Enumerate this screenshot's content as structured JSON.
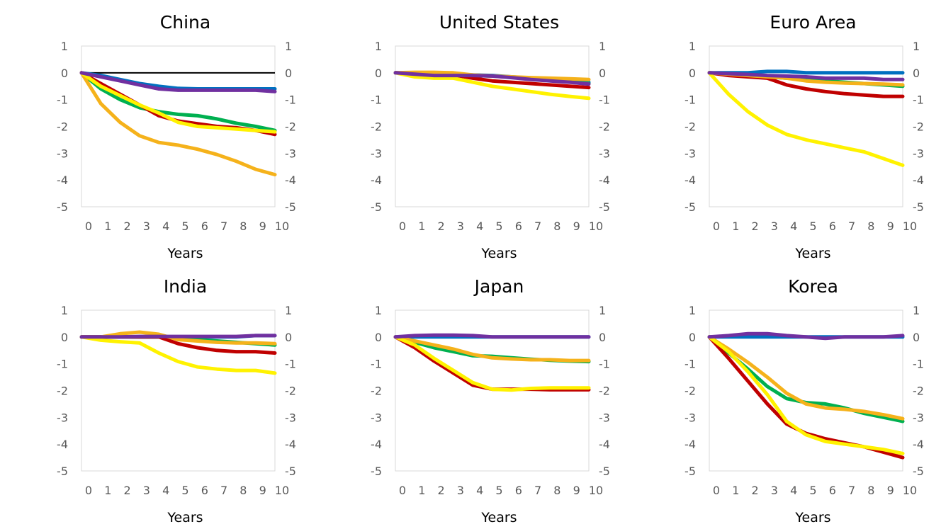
{
  "chart_data": [
    {
      "type": "line",
      "title": "China",
      "xlabel": "Years",
      "x": [
        0,
        1,
        2,
        3,
        4,
        5,
        6,
        7,
        8,
        9,
        10
      ],
      "ylim": [
        -5,
        1
      ],
      "yticks": [
        "1",
        "0",
        "-1",
        "-2",
        "-3",
        "-4",
        "-5"
      ],
      "yticks_right": [
        "1",
        "0",
        "-1",
        "-2",
        "-3",
        "-4",
        "-5"
      ],
      "zero_line": true,
      "series": [
        {
          "color": "#0070C0",
          "values": [
            0,
            -0.1,
            -0.25,
            -0.4,
            -0.5,
            -0.58,
            -0.6,
            -0.6,
            -0.6,
            -0.6,
            -0.6
          ]
        },
        {
          "color": "#00B050",
          "values": [
            0,
            -0.6,
            -1.0,
            -1.3,
            -1.45,
            -1.55,
            -1.6,
            -1.72,
            -1.88,
            -2.0,
            -2.15
          ]
        },
        {
          "color": "#C00000",
          "values": [
            0,
            -0.4,
            -0.8,
            -1.2,
            -1.6,
            -1.8,
            -1.9,
            -2.0,
            -2.05,
            -2.15,
            -2.3
          ]
        },
        {
          "color": "#F5B21B",
          "values": [
            0,
            -1.15,
            -1.85,
            -2.35,
            -2.6,
            -2.7,
            -2.85,
            -3.05,
            -3.3,
            -3.6,
            -3.8
          ]
        },
        {
          "color": "#FFF200",
          "values": [
            0,
            -0.5,
            -0.85,
            -1.2,
            -1.5,
            -1.85,
            -2.0,
            -2.05,
            -2.1,
            -2.15,
            -2.2
          ]
        },
        {
          "color": "#7030A0",
          "values": [
            0,
            -0.15,
            -0.3,
            -0.45,
            -0.6,
            -0.65,
            -0.65,
            -0.65,
            -0.65,
            -0.65,
            -0.7
          ]
        }
      ]
    },
    {
      "type": "line",
      "title": "United States",
      "xlabel": "Years",
      "x": [
        0,
        1,
        2,
        3,
        4,
        5,
        6,
        7,
        8,
        9,
        10
      ],
      "ylim": [
        -5,
        1
      ],
      "yticks": [
        "1",
        "0",
        "-1",
        "-2",
        "-3",
        "-4",
        "-5"
      ],
      "yticks_right": [
        "1",
        "0",
        "-1",
        "-2",
        "-3",
        "-4",
        "-5"
      ],
      "zero_line": false,
      "series": [
        {
          "color": "#0070C0",
          "values": [
            0,
            -0.02,
            -0.03,
            -0.05,
            -0.08,
            -0.1,
            -0.15,
            -0.2,
            -0.25,
            -0.3,
            -0.35
          ]
        },
        {
          "color": "#00B050",
          "values": [
            0,
            -0.03,
            -0.05,
            -0.07,
            -0.1,
            -0.12,
            -0.16,
            -0.22,
            -0.28,
            -0.34,
            -0.4
          ]
        },
        {
          "color": "#C00000",
          "values": [
            0,
            -0.02,
            -0.04,
            -0.08,
            -0.2,
            -0.3,
            -0.35,
            -0.4,
            -0.45,
            -0.5,
            -0.55
          ]
        },
        {
          "color": "#F5B21B",
          "values": [
            0,
            0.02,
            0.02,
            0.0,
            -0.08,
            -0.12,
            -0.15,
            -0.18,
            -0.2,
            -0.22,
            -0.25
          ]
        },
        {
          "color": "#FFF200",
          "values": [
            0,
            -0.15,
            -0.2,
            -0.2,
            -0.35,
            -0.5,
            -0.6,
            -0.7,
            -0.8,
            -0.88,
            -0.95
          ]
        },
        {
          "color": "#7030A0",
          "values": [
            0,
            -0.05,
            -0.1,
            -0.1,
            -0.1,
            -0.12,
            -0.18,
            -0.25,
            -0.3,
            -0.35,
            -0.42
          ]
        }
      ]
    },
    {
      "type": "line",
      "title": "Euro Area",
      "xlabel": "Years",
      "x": [
        0,
        1,
        2,
        3,
        4,
        5,
        6,
        7,
        8,
        9,
        10
      ],
      "ylim": [
        -5,
        1
      ],
      "yticks": [
        "1",
        "0",
        "-1",
        "-2",
        "-3",
        "-4",
        "-5"
      ],
      "yticks_right": [
        "1",
        "0",
        "-1",
        "-2",
        "-3",
        "-4",
        "-5"
      ],
      "zero_line": false,
      "series": [
        {
          "color": "#0070C0",
          "values": [
            0,
            0.0,
            0.0,
            0.05,
            0.05,
            0.0,
            0.0,
            0.0,
            0.0,
            0.0,
            0.0
          ]
        },
        {
          "color": "#00B050",
          "values": [
            0,
            -0.05,
            -0.1,
            -0.15,
            -0.2,
            -0.25,
            -0.3,
            -0.35,
            -0.4,
            -0.45,
            -0.5
          ]
        },
        {
          "color": "#C00000",
          "values": [
            0,
            -0.1,
            -0.15,
            -0.2,
            -0.45,
            -0.6,
            -0.7,
            -0.78,
            -0.83,
            -0.88,
            -0.88
          ]
        },
        {
          "color": "#F5B21B",
          "values": [
            0,
            -0.05,
            -0.1,
            -0.15,
            -0.2,
            -0.3,
            -0.35,
            -0.38,
            -0.4,
            -0.42,
            -0.45
          ]
        },
        {
          "color": "#FFF200",
          "values": [
            0,
            -0.8,
            -1.45,
            -1.95,
            -2.3,
            -2.5,
            -2.65,
            -2.8,
            -2.95,
            -3.2,
            -3.45
          ]
        },
        {
          "color": "#7030A0",
          "values": [
            0,
            -0.03,
            -0.06,
            -0.1,
            -0.12,
            -0.15,
            -0.2,
            -0.2,
            -0.2,
            -0.25,
            -0.25
          ]
        }
      ]
    },
    {
      "type": "line",
      "title": "India",
      "xlabel": "Years",
      "x": [
        0,
        1,
        2,
        3,
        4,
        5,
        6,
        7,
        8,
        9,
        10
      ],
      "ylim": [
        -5,
        1
      ],
      "yticks": [
        "1",
        "0",
        "-1",
        "-2",
        "-3",
        "-4",
        "-5"
      ],
      "yticks_right": [
        "1",
        "0",
        "-1",
        "-2",
        "-3",
        "-4",
        "-5"
      ],
      "zero_line": false,
      "series": [
        {
          "color": "#0070C0",
          "values": [
            0,
            0,
            0,
            0,
            0,
            0,
            0,
            0,
            0,
            0.05,
            0.05
          ]
        },
        {
          "color": "#00B050",
          "values": [
            0,
            0,
            0,
            0,
            0,
            -0.05,
            -0.1,
            -0.15,
            -0.2,
            -0.25,
            -0.3
          ]
        },
        {
          "color": "#C00000",
          "values": [
            0,
            0,
            0,
            0,
            0,
            -0.25,
            -0.4,
            -0.5,
            -0.55,
            -0.55,
            -0.6
          ]
        },
        {
          "color": "#F5B21B",
          "values": [
            0,
            0,
            0.12,
            0.18,
            0.1,
            -0.1,
            -0.15,
            -0.2,
            -0.22,
            -0.22,
            -0.25
          ]
        },
        {
          "color": "#FFF200",
          "values": [
            0,
            -0.12,
            -0.18,
            -0.22,
            -0.6,
            -0.92,
            -1.12,
            -1.2,
            -1.25,
            -1.25,
            -1.35
          ]
        },
        {
          "color": "#7030A0",
          "values": [
            0,
            0,
            0,
            0.02,
            0.02,
            0.02,
            0.02,
            0.02,
            0.02,
            0.05,
            0.05
          ]
        }
      ]
    },
    {
      "type": "line",
      "title": "Japan",
      "xlabel": "Years",
      "x": [
        0,
        1,
        2,
        3,
        4,
        5,
        6,
        7,
        8,
        9,
        10
      ],
      "ylim": [
        -5,
        1
      ],
      "yticks": [
        "1",
        "0",
        "-1",
        "-2",
        "-3",
        "-4",
        "-5"
      ],
      "yticks_right": [
        "1",
        "0",
        "-1",
        "-2",
        "-3",
        "-4",
        "-5"
      ],
      "zero_line": false,
      "series": [
        {
          "color": "#0070C0",
          "values": [
            0,
            0,
            0,
            0,
            0,
            0,
            0,
            0,
            0,
            0,
            0
          ]
        },
        {
          "color": "#00B050",
          "values": [
            0,
            -0.2,
            -0.4,
            -0.55,
            -0.7,
            -0.72,
            -0.78,
            -0.83,
            -0.87,
            -0.9,
            -0.92
          ]
        },
        {
          "color": "#C00000",
          "values": [
            0,
            -0.4,
            -0.9,
            -1.35,
            -1.8,
            -1.95,
            -1.95,
            -1.95,
            -1.97,
            -1.97,
            -1.97
          ]
        },
        {
          "color": "#F5B21B",
          "values": [
            0,
            -0.15,
            -0.3,
            -0.45,
            -0.65,
            -0.78,
            -0.82,
            -0.85,
            -0.85,
            -0.88,
            -0.88
          ]
        },
        {
          "color": "#FFF200",
          "values": [
            0,
            -0.3,
            -0.8,
            -1.25,
            -1.7,
            -1.95,
            -1.98,
            -1.92,
            -1.9,
            -1.9,
            -1.9
          ]
        },
        {
          "color": "#7030A0",
          "values": [
            0,
            0.05,
            0.07,
            0.07,
            0.05,
            0,
            0,
            0,
            0,
            0,
            0
          ]
        }
      ]
    },
    {
      "type": "line",
      "title": "Korea",
      "xlabel": "Years",
      "x": [
        0,
        1,
        2,
        3,
        4,
        5,
        6,
        7,
        8,
        9,
        10
      ],
      "ylim": [
        -5,
        1
      ],
      "yticks": [
        "1",
        "0",
        "-1",
        "-2",
        "-3",
        "-4",
        "-5"
      ],
      "yticks_right": [
        "1",
        "0",
        "-1",
        "-2",
        "-3",
        "-4",
        "-5"
      ],
      "zero_line": false,
      "series": [
        {
          "color": "#0070C0",
          "values": [
            0,
            0,
            0,
            0,
            0,
            0,
            0,
            0,
            0,
            0,
            0
          ]
        },
        {
          "color": "#00B050",
          "values": [
            0,
            -0.6,
            -1.2,
            -1.85,
            -2.3,
            -2.45,
            -2.5,
            -2.65,
            -2.85,
            -3.0,
            -3.15
          ]
        },
        {
          "color": "#C00000",
          "values": [
            0,
            -0.8,
            -1.65,
            -2.5,
            -3.25,
            -3.6,
            -3.8,
            -3.95,
            -4.1,
            -4.3,
            -4.5
          ]
        },
        {
          "color": "#F5B21B",
          "values": [
            0,
            -0.45,
            -0.95,
            -1.5,
            -2.1,
            -2.5,
            -2.65,
            -2.7,
            -2.78,
            -2.9,
            -3.05
          ]
        },
        {
          "color": "#FFF200",
          "values": [
            0,
            -0.55,
            -1.3,
            -2.15,
            -3.15,
            -3.65,
            -3.9,
            -4.0,
            -4.1,
            -4.2,
            -4.35
          ]
        },
        {
          "color": "#7030A0",
          "values": [
            0,
            0.05,
            0.12,
            0.12,
            0.05,
            0,
            -0.05,
            0,
            0,
            0,
            0.05
          ]
        }
      ]
    }
  ]
}
